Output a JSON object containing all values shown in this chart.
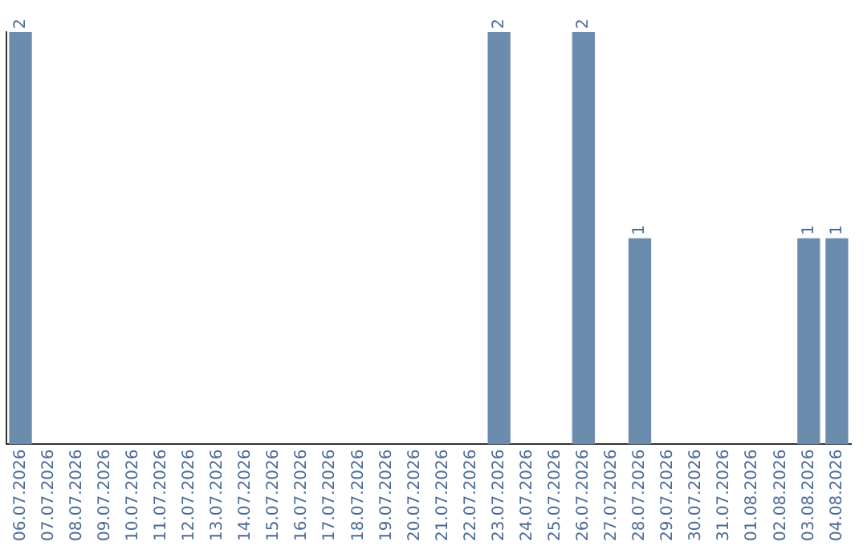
{
  "chart_data": {
    "type": "bar",
    "categories": [
      "06.07.2026",
      "07.07.2026",
      "08.07.2026",
      "09.07.2026",
      "10.07.2026",
      "11.07.2026",
      "12.07.2026",
      "13.07.2026",
      "14.07.2026",
      "15.07.2026",
      "16.07.2026",
      "17.07.2026",
      "18.07.2026",
      "19.07.2026",
      "20.07.2026",
      "21.07.2026",
      "22.07.2026",
      "23.07.2026",
      "24.07.2026",
      "25.07.2026",
      "26.07.2026",
      "27.07.2026",
      "28.07.2026",
      "29.07.2026",
      "30.07.2026",
      "31.07.2026",
      "01.08.2026",
      "02.08.2026",
      "03.08.2026",
      "04.08.2026"
    ],
    "values": [
      2,
      0,
      0,
      0,
      0,
      0,
      0,
      0,
      0,
      0,
      0,
      0,
      0,
      0,
      0,
      0,
      0,
      2,
      0,
      0,
      2,
      0,
      1,
      0,
      0,
      0,
      0,
      0,
      1,
      1
    ],
    "value_labels": [
      "2",
      null,
      null,
      null,
      null,
      null,
      null,
      null,
      null,
      null,
      null,
      null,
      null,
      null,
      null,
      null,
      null,
      "2",
      null,
      null,
      "2",
      null,
      "1",
      null,
      null,
      null,
      null,
      null,
      "1",
      "1"
    ],
    "color": "#6b8cac",
    "tick_labels": "x",
    "grid": false,
    "legend": false
  }
}
